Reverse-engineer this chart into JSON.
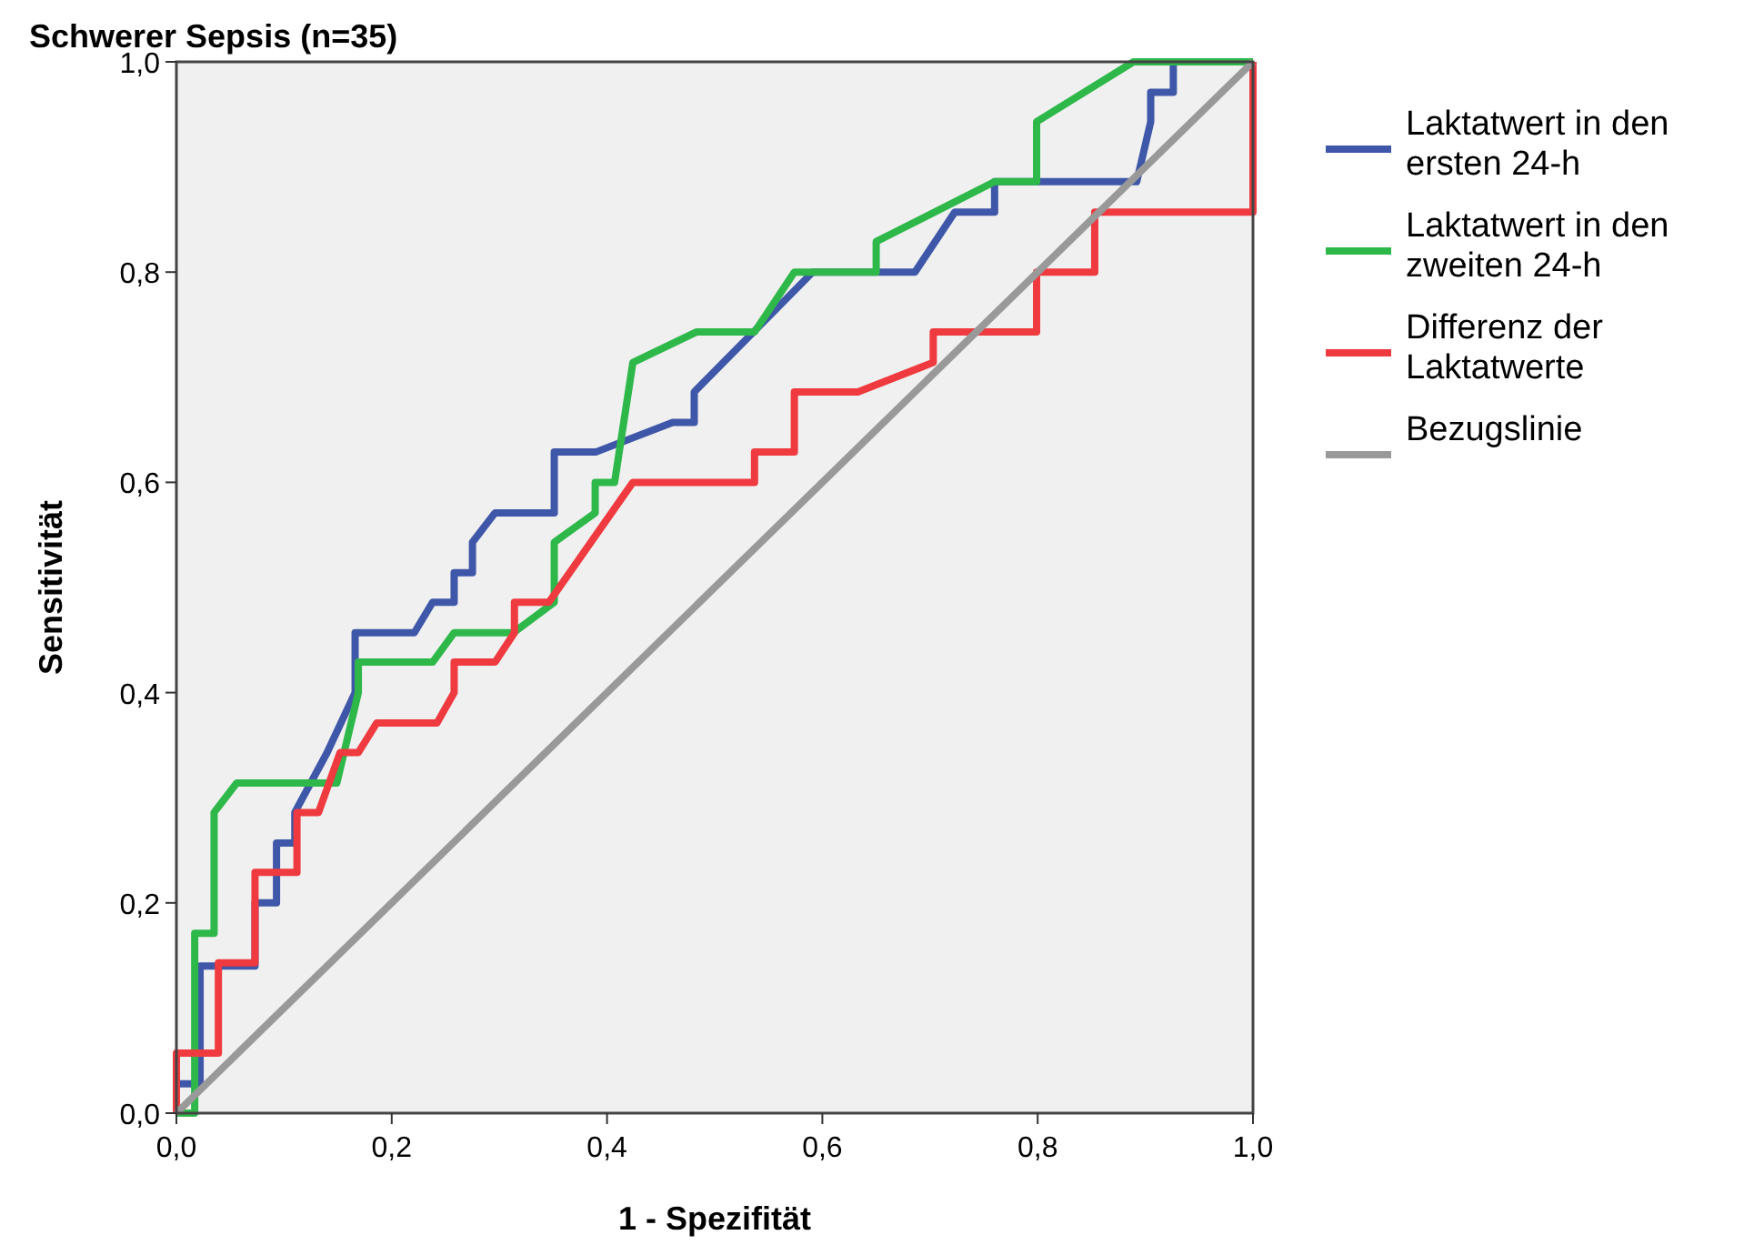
{
  "chart_data": {
    "type": "line",
    "title": "Schwerer Sepsis (n=35)",
    "xlabel": "1 - Spezifität",
    "ylabel": "Sensitivität",
    "xlim": [
      0,
      1
    ],
    "ylim": [
      0,
      1
    ],
    "xticks": [
      {
        "value": 0,
        "label": "0,0"
      },
      {
        "value": 0.2,
        "label": "0,2"
      },
      {
        "value": 0.4,
        "label": "0,4"
      },
      {
        "value": 0.6,
        "label": "0,6"
      },
      {
        "value": 0.8,
        "label": "0,8"
      },
      {
        "value": 1,
        "label": "1,0"
      }
    ],
    "yticks": [
      {
        "value": 0,
        "label": "0,0"
      },
      {
        "value": 0.2,
        "label": "0,2"
      },
      {
        "value": 0.4,
        "label": "0,4"
      },
      {
        "value": 0.6,
        "label": "0,6"
      },
      {
        "value": 0.8,
        "label": "0,8"
      },
      {
        "value": 1,
        "label": "1,0"
      }
    ],
    "grid": false,
    "legend": "right",
    "marker": "none",
    "line_style": "solid",
    "series": [
      {
        "name": "Laktatwert in den ersten 24-h",
        "color": "#3f57a8",
        "x": [
          0,
          0,
          0.022,
          0.022,
          0.073,
          0.073,
          0.093,
          0.093,
          0.11,
          0.11,
          0.14,
          0.166,
          0.166,
          0.221,
          0.238,
          0.258,
          0.258,
          0.275,
          0.275,
          0.296,
          0.351,
          0.351,
          0.39,
          0.461,
          0.481,
          0.481,
          0.591,
          0.686,
          0.723,
          0.76,
          0.76,
          0.892,
          0.905,
          0.905,
          0.926,
          0.926,
          1
        ],
        "values": [
          0,
          0.028,
          0.028,
          0.14,
          0.14,
          0.2,
          0.2,
          0.257,
          0.257,
          0.286,
          0.343,
          0.4,
          0.457,
          0.457,
          0.486,
          0.486,
          0.514,
          0.514,
          0.543,
          0.571,
          0.571,
          0.629,
          0.629,
          0.657,
          0.657,
          0.686,
          0.8,
          0.8,
          0.857,
          0.857,
          0.886,
          0.886,
          0.943,
          0.971,
          0.971,
          1,
          1
        ]
      },
      {
        "name": "Laktatwert in den zweiten 24-h",
        "color": "#2eb84a",
        "x": [
          0,
          0.017,
          0.017,
          0.035,
          0.035,
          0.056,
          0.149,
          0.169,
          0.169,
          0.238,
          0.258,
          0.313,
          0.351,
          0.351,
          0.389,
          0.389,
          0.407,
          0.424,
          0.483,
          0.537,
          0.574,
          0.65,
          0.65,
          0.76,
          0.799,
          0.799,
          0.889,
          1
        ],
        "values": [
          0,
          0,
          0.171,
          0.171,
          0.286,
          0.314,
          0.314,
          0.4,
          0.429,
          0.429,
          0.457,
          0.457,
          0.486,
          0.543,
          0.571,
          0.6,
          0.6,
          0.714,
          0.743,
          0.743,
          0.8,
          0.8,
          0.829,
          0.886,
          0.886,
          0.943,
          1,
          1
        ]
      },
      {
        "name": "Differenz der Laktatwerte",
        "color": "#ef3a3f",
        "x": [
          0,
          0,
          0.039,
          0.039,
          0.073,
          0.073,
          0.112,
          0.112,
          0.132,
          0.152,
          0.169,
          0.186,
          0.242,
          0.258,
          0.258,
          0.296,
          0.314,
          0.314,
          0.346,
          0.424,
          0.537,
          0.537,
          0.574,
          0.574,
          0.633,
          0.703,
          0.703,
          0.799,
          0.799,
          0.853,
          0.853,
          1,
          1
        ],
        "values": [
          0,
          0.057,
          0.057,
          0.143,
          0.143,
          0.229,
          0.229,
          0.286,
          0.286,
          0.343,
          0.343,
          0.371,
          0.371,
          0.4,
          0.429,
          0.429,
          0.457,
          0.486,
          0.486,
          0.6,
          0.6,
          0.629,
          0.629,
          0.686,
          0.686,
          0.714,
          0.743,
          0.743,
          0.8,
          0.8,
          0.857,
          0.857,
          1
        ]
      },
      {
        "name": "Bezugslinie",
        "color": "#999999",
        "x": [
          0,
          1
        ],
        "values": [
          0,
          1
        ]
      }
    ]
  }
}
